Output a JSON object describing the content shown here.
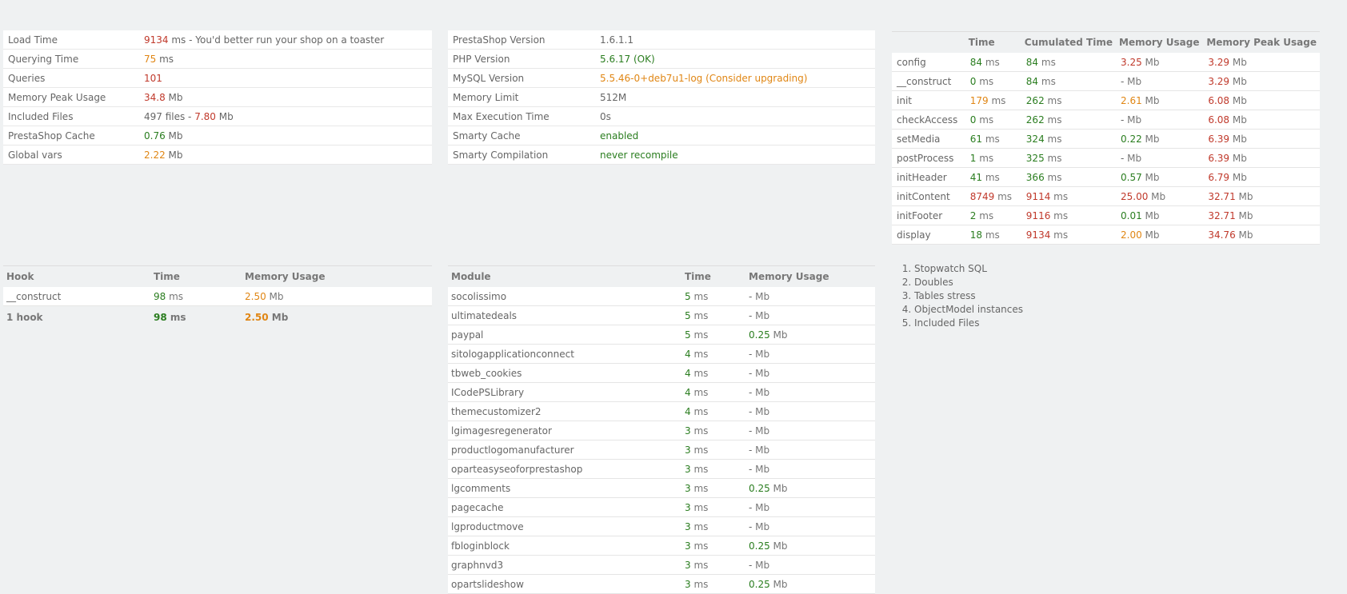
{
  "summary": {
    "load_time_label": "Load Time",
    "load_time_value": "9134",
    "load_time_suffix": " ms - You'd better run your shop on a toaster",
    "querying_time_label": "Querying Time",
    "querying_time_value": "75",
    "querying_time_unit": " ms",
    "queries_label": "Queries",
    "queries_value": "101",
    "memory_peak_label": "Memory Peak Usage",
    "memory_peak_value": "34.8",
    "memory_peak_unit": " Mb",
    "included_files_label": "Included Files",
    "included_files_count": "497 files - ",
    "included_files_size": "7.80",
    "included_files_unit": " Mb",
    "cache_label": "PrestaShop Cache",
    "cache_value": "0.76",
    "cache_unit": " Mb",
    "global_vars_label": "Global vars",
    "global_vars_value": "2.22",
    "global_vars_unit": " Mb"
  },
  "environment": {
    "ps_version_label": "PrestaShop Version",
    "ps_version_value": "1.6.1.1",
    "php_version_label": "PHP Version",
    "php_version_value": "5.6.17 (OK)",
    "mysql_version_label": "MySQL Version",
    "mysql_version_value": "5.5.46-0+deb7u1-log (Consider upgrading)",
    "memory_limit_label": "Memory Limit",
    "memory_limit_value": "512M",
    "max_exec_label": "Max Execution Time",
    "max_exec_value": "0s",
    "smarty_cache_label": "Smarty Cache",
    "smarty_cache_value": "enabled",
    "smarty_compilation_label": "Smarty Compilation",
    "smarty_compilation_value": "never recompile"
  },
  "stopwatch": {
    "headers": [
      "",
      "Time",
      "Cumulated Time",
      "Memory Usage",
      "Memory Peak Usage"
    ],
    "ms_unit": " ms",
    "mb_unit": " Mb",
    "rows": [
      {
        "name": "config",
        "time": "84",
        "cumul": "84",
        "mem": "3.25",
        "peak": "3.29"
      },
      {
        "name": "__construct",
        "time": "0",
        "cumul": "84",
        "mem": "-",
        "peak": "3.29"
      },
      {
        "name": "init",
        "time": "179",
        "cumul": "262",
        "mem": "2.61",
        "peak": "6.08"
      },
      {
        "name": "checkAccess",
        "time": "0",
        "cumul": "262",
        "mem": "-",
        "peak": "6.08"
      },
      {
        "name": "setMedia",
        "time": "61",
        "cumul": "324",
        "mem": "0.22",
        "peak": "6.39"
      },
      {
        "name": "postProcess",
        "time": "1",
        "cumul": "325",
        "mem": "-",
        "peak": "6.39"
      },
      {
        "name": "initHeader",
        "time": "41",
        "cumul": "366",
        "mem": "0.57",
        "peak": "6.79"
      },
      {
        "name": "initContent",
        "time": "8749",
        "cumul": "9114",
        "mem": "25.00",
        "peak": "32.71"
      },
      {
        "name": "initFooter",
        "time": "2",
        "cumul": "9116",
        "mem": "0.01",
        "peak": "32.71"
      },
      {
        "name": "display",
        "time": "18",
        "cumul": "9134",
        "mem": "2.00",
        "peak": "34.76"
      }
    ]
  },
  "hooks": {
    "headers": [
      "Hook",
      "Time",
      "Memory Usage"
    ],
    "rows": [
      {
        "name": "__construct",
        "time": "98",
        "mem": "2.50"
      }
    ],
    "total": {
      "name": "1 hook",
      "time": "98",
      "mem": "2.50"
    }
  },
  "modules": {
    "headers": [
      "Module",
      "Time",
      "Memory Usage"
    ],
    "rows": [
      {
        "name": "socolissimo",
        "time": "5",
        "mem": "-"
      },
      {
        "name": "ultimatedeals",
        "time": "5",
        "mem": "-"
      },
      {
        "name": "paypal",
        "time": "5",
        "mem": "0.25"
      },
      {
        "name": "sitologapplicationconnect",
        "time": "4",
        "mem": "-"
      },
      {
        "name": "tbweb_cookies",
        "time": "4",
        "mem": "-"
      },
      {
        "name": "ICodePSLibrary",
        "time": "4",
        "mem": "-"
      },
      {
        "name": "themecustomizer2",
        "time": "4",
        "mem": "-"
      },
      {
        "name": "lgimagesregenerator",
        "time": "3",
        "mem": "-"
      },
      {
        "name": "productlogomanufacturer",
        "time": "3",
        "mem": "-"
      },
      {
        "name": "oparteasyseoforprestashop",
        "time": "3",
        "mem": "-"
      },
      {
        "name": "lgcomments",
        "time": "3",
        "mem": "0.25"
      },
      {
        "name": "pagecache",
        "time": "3",
        "mem": "-"
      },
      {
        "name": "lgproductmove",
        "time": "3",
        "mem": "-"
      },
      {
        "name": "fbloginblock",
        "time": "3",
        "mem": "0.25"
      },
      {
        "name": "graphnvd3",
        "time": "3",
        "mem": "-"
      },
      {
        "name": "opartslideshow",
        "time": "3",
        "mem": "0.25"
      }
    ]
  },
  "links": [
    "Stopwatch SQL",
    "Doubles",
    "Tables stress",
    "ObjectModel instances",
    "Included Files"
  ],
  "colors": {
    "good": "#2a7d1f",
    "bad": "#c0392b",
    "warn": "#e08614"
  }
}
